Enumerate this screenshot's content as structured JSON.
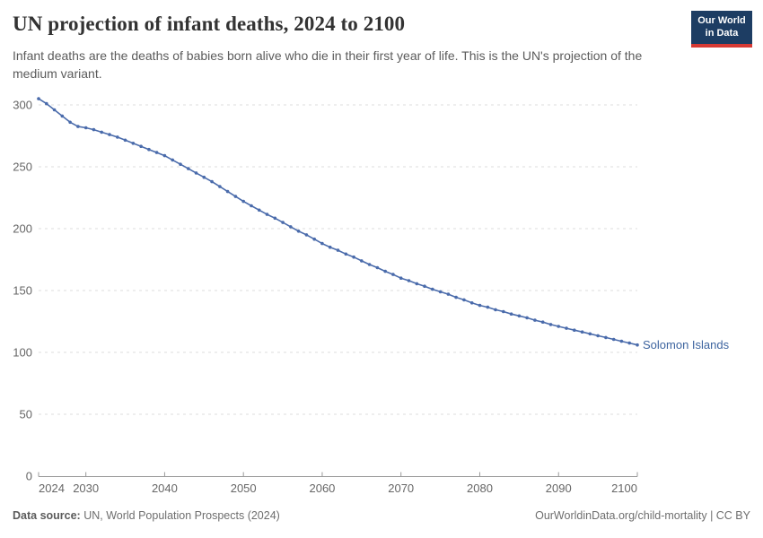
{
  "header": {
    "title": "UN projection of infant deaths, 2024 to 2100",
    "subtitle": "Infant deaths are the deaths of babies born alive who die in their first year of life. This is the UN's projection of the medium variant."
  },
  "logo": {
    "line1": "Our World",
    "line2": "in Data",
    "bg_color": "#1d3d63",
    "bar_color": "#d73a34"
  },
  "chart_data": {
    "type": "line",
    "title": "UN projection of infant deaths, 2024 to 2100",
    "xlabel": "",
    "ylabel": "",
    "grid": true,
    "legend_position": "end-of-line-label",
    "xlim": [
      2024,
      2100
    ],
    "ylim": [
      0,
      300
    ],
    "x_ticks": [
      2024,
      2030,
      2040,
      2050,
      2060,
      2070,
      2080,
      2090,
      2100
    ],
    "y_ticks": [
      0,
      50,
      100,
      150,
      200,
      250,
      300
    ],
    "series": [
      {
        "name": "Solomon Islands",
        "color": "#4a6bab",
        "label_color": "#3d649f",
        "years": [
          2024,
          2025,
          2026,
          2027,
          2028,
          2029,
          2030,
          2031,
          2032,
          2033,
          2034,
          2035,
          2036,
          2037,
          2038,
          2039,
          2040,
          2041,
          2042,
          2043,
          2044,
          2045,
          2046,
          2047,
          2048,
          2049,
          2050,
          2051,
          2052,
          2053,
          2054,
          2055,
          2056,
          2057,
          2058,
          2059,
          2060,
          2061,
          2062,
          2063,
          2064,
          2065,
          2066,
          2067,
          2068,
          2069,
          2070,
          2071,
          2072,
          2073,
          2074,
          2075,
          2076,
          2077,
          2078,
          2079,
          2080,
          2081,
          2082,
          2083,
          2084,
          2085,
          2086,
          2087,
          2088,
          2089,
          2090,
          2091,
          2092,
          2093,
          2094,
          2095,
          2096,
          2097,
          2098,
          2099,
          2100
        ],
        "values": [
          305,
          301,
          296,
          291,
          286,
          282.5,
          281.5,
          280,
          278,
          276,
          274,
          271.5,
          269,
          266.5,
          264,
          261.5,
          259,
          255.5,
          252,
          248.5,
          245,
          241.5,
          238,
          234,
          230,
          226,
          222,
          218.5,
          215,
          211.5,
          208.5,
          205,
          201.5,
          198,
          195,
          191.5,
          188,
          185,
          182.5,
          179.5,
          177,
          174,
          171,
          168.5,
          165.5,
          163,
          160,
          158,
          155.5,
          153.5,
          151,
          149,
          147,
          144.5,
          142.5,
          140,
          138,
          136.5,
          134.5,
          133,
          131,
          129.5,
          128,
          126,
          124.5,
          122.5,
          121,
          119.5,
          118,
          116.5,
          115,
          113.5,
          112,
          110.5,
          109,
          107.5,
          106
        ]
      }
    ],
    "styles": {
      "grid_color": "#dcdcdc",
      "axis_color": "#999999",
      "tick_label_color": "#666666"
    }
  },
  "footer": {
    "source_label": "Data source:",
    "source_text": " UN, World Population Prospects (2024)",
    "right_text": "OurWorldinData.org/child-mortality | CC BY"
  }
}
